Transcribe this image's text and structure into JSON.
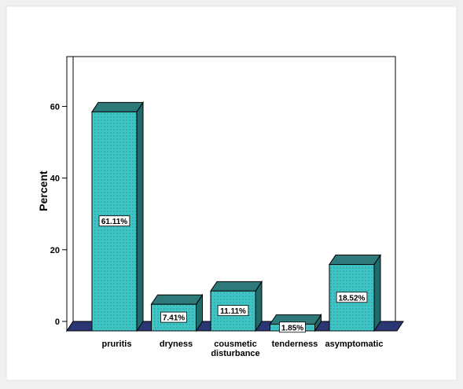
{
  "chart_data": {
    "type": "bar",
    "categories": [
      "pruritis",
      "dryness",
      "cousmetic disturbance",
      "tenderness",
      "asymptomatic"
    ],
    "category_labels": [
      [
        "pruritis"
      ],
      [
        "dryness"
      ],
      [
        "cousmetic",
        "disturbance"
      ],
      [
        "tenderness"
      ],
      [
        "asymptomatic"
      ]
    ],
    "values": [
      61.11,
      7.41,
      11.11,
      1.85,
      18.52
    ],
    "value_labels": [
      "61.11%",
      "7.41%",
      "11.11%",
      "1.85%",
      "18.52%"
    ],
    "ylabel": "Percent",
    "xlabel": "",
    "yticks": [
      0,
      20,
      40,
      60
    ],
    "ylim": [
      0,
      73
    ],
    "style": "3d",
    "grid": false,
    "colors": {
      "bar_front": "#3fc5c5",
      "bar_top": "#2e7a7a",
      "bar_side": "#1f6b6b",
      "floor": "#2b3775",
      "plot_bg": "#ffffff",
      "outer_bg": "#f0f0f0",
      "panel_bg": "#ffffff"
    }
  }
}
